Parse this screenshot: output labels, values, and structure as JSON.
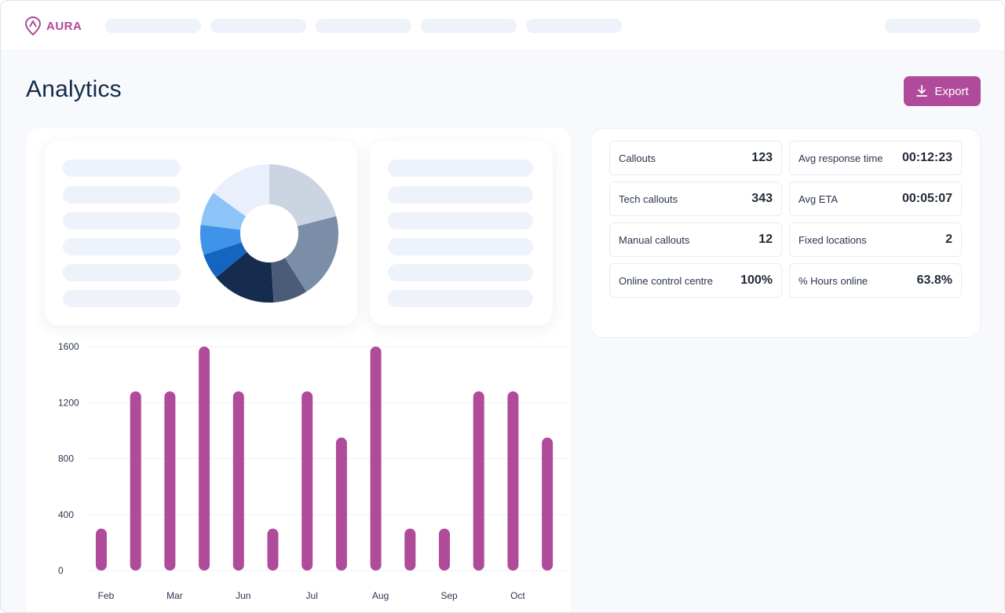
{
  "app": {
    "logo_text": "AURA",
    "brand_color": "#b04a9a"
  },
  "header": {
    "title": "Analytics",
    "export_label": "Export"
  },
  "stats": [
    {
      "label": "Callouts",
      "value": "123"
    },
    {
      "label": "Avg response time",
      "value": "00:12:23"
    },
    {
      "label": "Tech callouts",
      "value": "343"
    },
    {
      "label": "Avg ETA",
      "value": "00:05:07"
    },
    {
      "label": "Manual callouts",
      "value": "12"
    },
    {
      "label": "Fixed locations",
      "value": "2"
    },
    {
      "label": "Online control centre",
      "value": "100%"
    },
    {
      "label": "% Hours online",
      "value": "63.8%"
    }
  ],
  "donut_colors": [
    "#cbd5e1",
    "#7b8ea8",
    "#4b5c78",
    "#152c4f",
    "#1565c0",
    "#3f93e8",
    "#8cc4fa",
    "#e9f0fb"
  ],
  "chart_data": [
    {
      "type": "pie",
      "values": [
        21,
        20,
        8,
        15,
        6,
        7,
        8,
        15
      ],
      "colors": [
        "#cbd5e1",
        "#7b8ea8",
        "#4b5c78",
        "#152c4f",
        "#1565c0",
        "#3f93e8",
        "#8cc4fa",
        "#e9f0fb"
      ]
    },
    {
      "type": "bar",
      "x_tick_labels": [
        "Feb",
        "Mar",
        "Jun",
        "Jul",
        "Aug",
        "Sep",
        "Oct"
      ],
      "values": [
        300,
        1280,
        1280,
        1600,
        1280,
        300,
        1280,
        950,
        1600,
        300,
        300,
        1280,
        1280,
        950
      ],
      "yticks": [
        0,
        400,
        800,
        1200,
        1600
      ],
      "ylim": [
        0,
        1600
      ],
      "grid": true,
      "color": "#b04a9a"
    }
  ]
}
